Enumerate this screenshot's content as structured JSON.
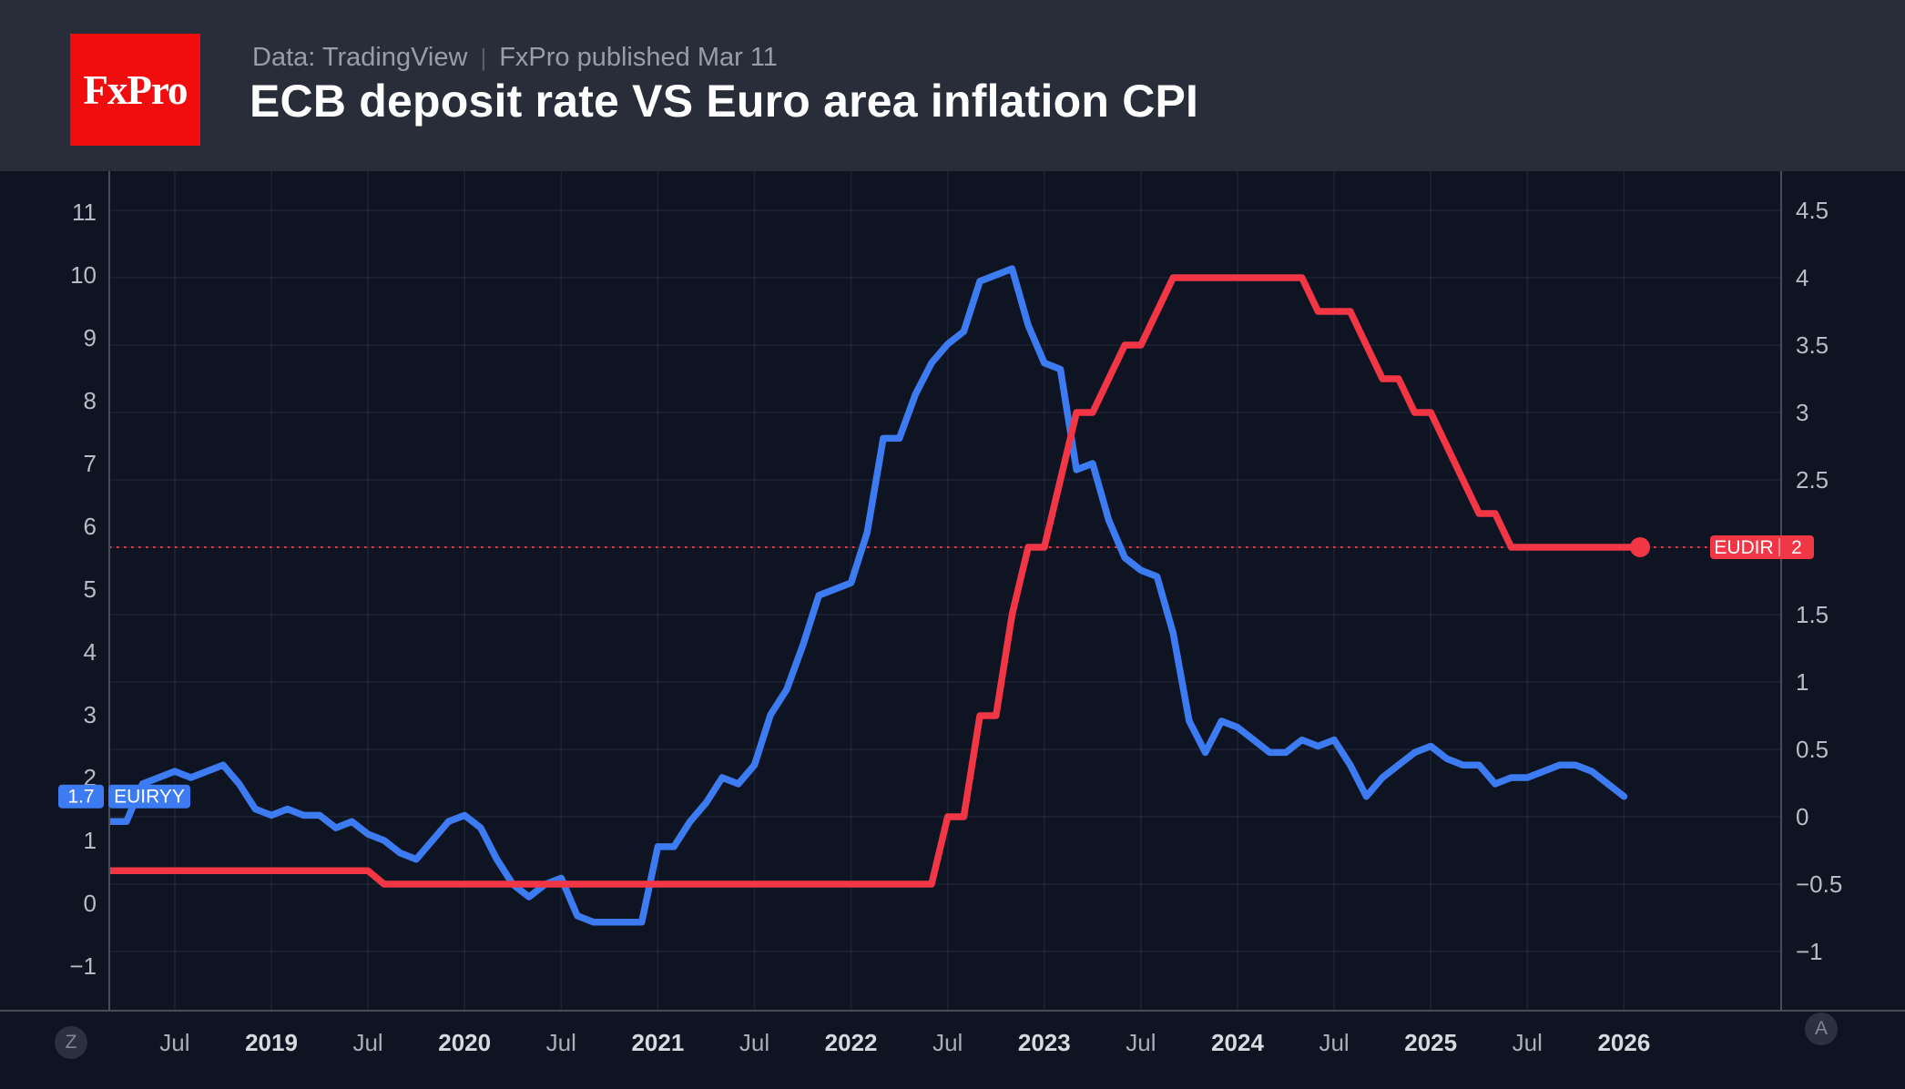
{
  "header": {
    "logo_text": "FxPro",
    "source": "Data: TradingView",
    "divider": "|",
    "published": "FxPro published Mar 11",
    "title": "ECB deposit rate VS Euro area inflation CPI"
  },
  "buttons": {
    "zoom_button": "Z",
    "auto_scale_button": "A"
  },
  "colors": {
    "header_bg": "#282d39",
    "chart_bg": "#0e1421",
    "logo_red": "#f10d0d",
    "inflation_blue": "#3d7bf2",
    "rate_red": "#f23645",
    "grid": "rgba(170,178,197,0.10)",
    "axis_border": "#474c59"
  },
  "chart_data": {
    "type": "line",
    "title": "ECB deposit rate VS Euro area inflation CPI",
    "grid": true,
    "left_axis": {
      "attached_series": "EUIRYY",
      "visible_range": [
        -1.7,
        11.8
      ],
      "ticks": [
        {
          "v": 11,
          "label": "11"
        },
        {
          "v": 10,
          "label": "10"
        },
        {
          "v": 9,
          "label": "9"
        },
        {
          "v": 8,
          "label": "8"
        },
        {
          "v": 7,
          "label": "7"
        },
        {
          "v": 6,
          "label": "6"
        },
        {
          "v": 5,
          "label": "5"
        },
        {
          "v": 4,
          "label": "4"
        },
        {
          "v": 3,
          "label": "3"
        },
        {
          "v": 2,
          "label": "2"
        },
        {
          "v": 1,
          "label": "1"
        },
        {
          "v": 0,
          "label": "0"
        },
        {
          "v": -1,
          "label": "−1"
        }
      ]
    },
    "right_axis": {
      "attached_series": "EUDIR",
      "visible_range": [
        -1.45,
        4.86
      ],
      "ticks": [
        {
          "v": 4.5,
          "label": "4.5"
        },
        {
          "v": 4,
          "label": "4"
        },
        {
          "v": 3.5,
          "label": "3.5"
        },
        {
          "v": 3,
          "label": "3"
        },
        {
          "v": 2.5,
          "label": "2.5"
        },
        {
          "v": 2,
          "label": "2"
        },
        {
          "v": 1.5,
          "label": "1.5"
        },
        {
          "v": 1,
          "label": "1"
        },
        {
          "v": 0.5,
          "label": "0.5"
        },
        {
          "v": 0,
          "label": "0"
        },
        {
          "v": -0.5,
          "label": "−0.5"
        },
        {
          "v": -1,
          "label": "−1"
        }
      ]
    },
    "x_axis": {
      "ticks": [
        {
          "t": 2018.5,
          "label": "Jul",
          "major": false
        },
        {
          "t": 2019.0,
          "label": "2019",
          "major": true
        },
        {
          "t": 2019.5,
          "label": "Jul",
          "major": false
        },
        {
          "t": 2020.0,
          "label": "2020",
          "major": true
        },
        {
          "t": 2020.5,
          "label": "Jul",
          "major": false
        },
        {
          "t": 2021.0,
          "label": "2021",
          "major": true
        },
        {
          "t": 2021.5,
          "label": "Jul",
          "major": false
        },
        {
          "t": 2022.0,
          "label": "2022",
          "major": true
        },
        {
          "t": 2022.5,
          "label": "Jul",
          "major": false
        },
        {
          "t": 2023.0,
          "label": "2023",
          "major": true
        },
        {
          "t": 2023.5,
          "label": "Jul",
          "major": false
        },
        {
          "t": 2024.0,
          "label": "2024",
          "major": true
        },
        {
          "t": 2024.5,
          "label": "Jul",
          "major": false
        },
        {
          "t": 2025.0,
          "label": "2025",
          "major": true
        },
        {
          "t": 2025.5,
          "label": "Jul",
          "major": false
        },
        {
          "t": 2026.0,
          "label": "2026",
          "major": true
        }
      ]
    },
    "level_line": {
      "series": "EUDIR",
      "axis": "right",
      "value": 2,
      "style": "dotted"
    },
    "series": [
      {
        "id": "EUIRYY",
        "name": "Euro area inflation CPI YoY",
        "axis": "left",
        "color": "#3d7bf2",
        "badge_value": "1.7",
        "badge_label": "EUIRYY",
        "start_year": 2018,
        "start_month": 3,
        "end_marker": false,
        "values": [
          1.3,
          1.3,
          1.9,
          2.0,
          2.1,
          2.0,
          2.1,
          2.2,
          1.9,
          1.5,
          1.4,
          1.5,
          1.4,
          1.4,
          1.2,
          1.3,
          1.1,
          1.0,
          0.8,
          0.7,
          1.0,
          1.3,
          1.4,
          1.2,
          0.7,
          0.3,
          0.1,
          0.3,
          0.4,
          -0.2,
          -0.3,
          -0.3,
          -0.3,
          -0.3,
          0.9,
          0.9,
          1.3,
          1.6,
          2.0,
          1.9,
          2.2,
          3.0,
          3.4,
          4.1,
          4.9,
          5.0,
          5.1,
          5.9,
          7.4,
          7.4,
          8.1,
          8.6,
          8.9,
          9.1,
          9.9,
          10.0,
          10.1,
          9.2,
          8.6,
          8.5,
          6.9,
          7.0,
          6.1,
          5.5,
          5.3,
          5.2,
          4.3,
          2.9,
          2.4,
          2.9,
          2.8,
          2.6,
          2.4,
          2.4,
          2.6,
          2.5,
          2.6,
          2.2,
          1.7,
          2.0,
          2.2,
          2.4,
          2.5,
          2.3,
          2.2,
          2.2,
          1.9,
          2.0,
          2.0,
          2.1,
          2.2,
          2.2,
          2.1,
          1.9,
          1.7
        ]
      },
      {
        "id": "EUDIR",
        "name": "ECB deposit rate",
        "axis": "right",
        "color": "#f23645",
        "badge_value": "2",
        "badge_label": "EUDIR",
        "start_year": 2018,
        "start_month": 3,
        "end_marker": true,
        "values": [
          -0.4,
          -0.4,
          -0.4,
          -0.4,
          -0.4,
          -0.4,
          -0.4,
          -0.4,
          -0.4,
          -0.4,
          -0.4,
          -0.4,
          -0.4,
          -0.4,
          -0.4,
          -0.4,
          -0.4,
          -0.5,
          -0.5,
          -0.5,
          -0.5,
          -0.5,
          -0.5,
          -0.5,
          -0.5,
          -0.5,
          -0.5,
          -0.5,
          -0.5,
          -0.5,
          -0.5,
          -0.5,
          -0.5,
          -0.5,
          -0.5,
          -0.5,
          -0.5,
          -0.5,
          -0.5,
          -0.5,
          -0.5,
          -0.5,
          -0.5,
          -0.5,
          -0.5,
          -0.5,
          -0.5,
          -0.5,
          -0.5,
          -0.5,
          -0.5,
          -0.5,
          0.0,
          0.0,
          0.75,
          0.75,
          1.5,
          2.0,
          2.0,
          2.5,
          3.0,
          3.0,
          3.25,
          3.5,
          3.5,
          3.75,
          4.0,
          4.0,
          4.0,
          4.0,
          4.0,
          4.0,
          4.0,
          4.0,
          4.0,
          3.75,
          3.75,
          3.75,
          3.5,
          3.25,
          3.25,
          3.0,
          3.0,
          2.75,
          2.5,
          2.25,
          2.25,
          2.0,
          2.0,
          2.0,
          2.0,
          2.0,
          2.0,
          2.0,
          2.0,
          2.0
        ]
      }
    ]
  }
}
